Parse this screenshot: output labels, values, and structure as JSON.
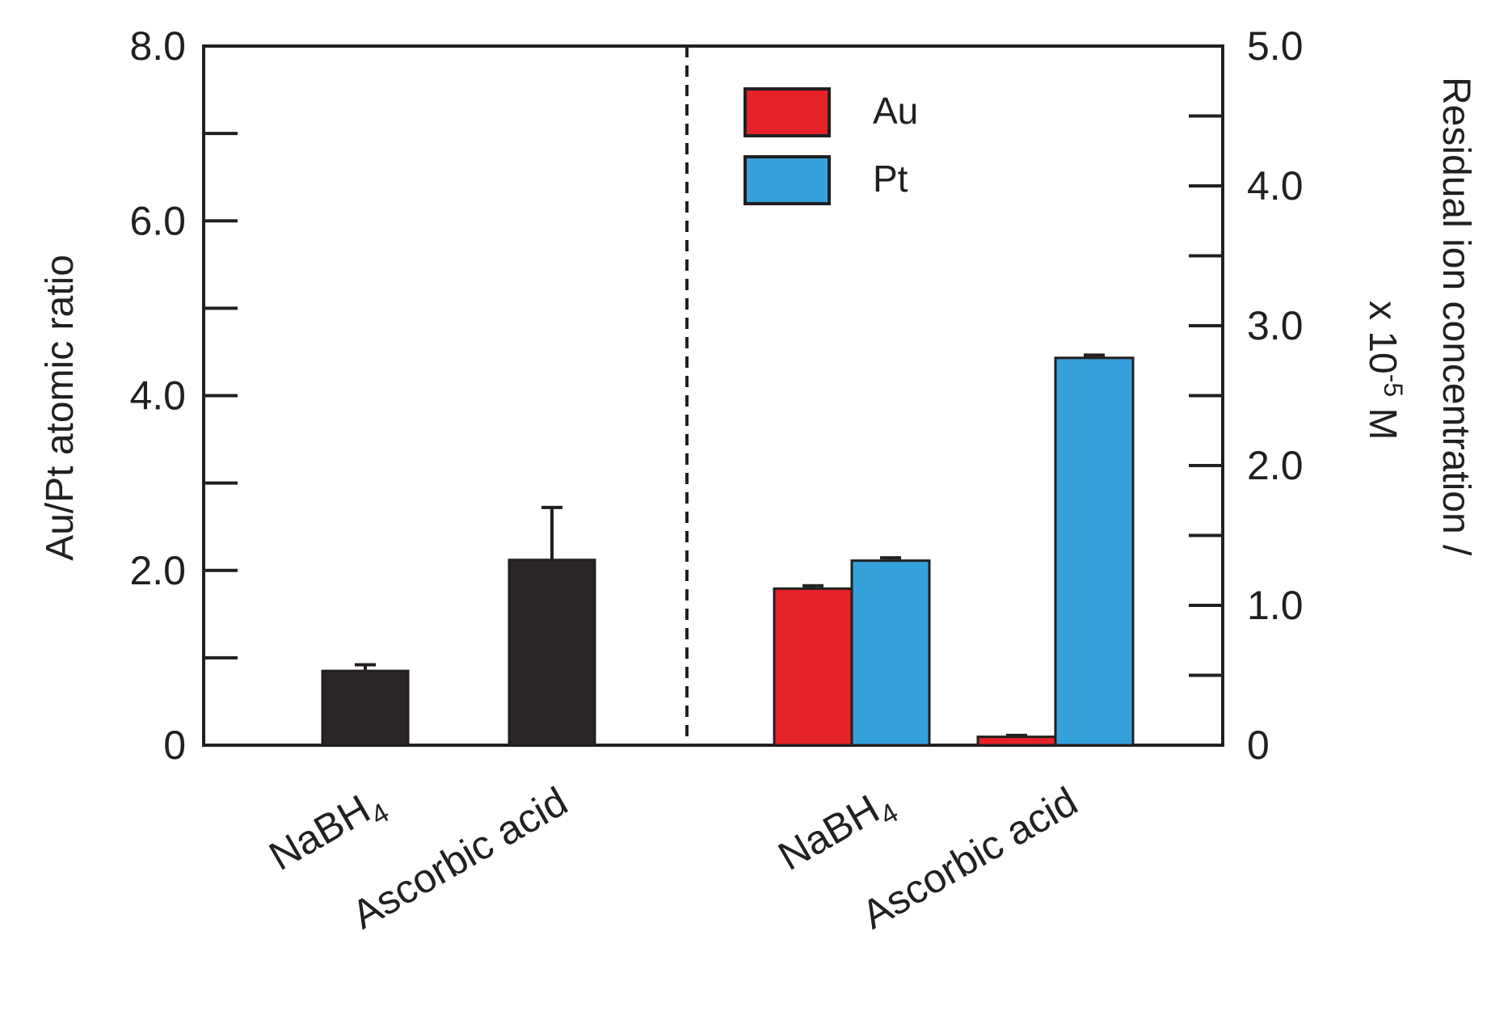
{
  "chart_data": {
    "type": "bar",
    "left_panel": {
      "ylabel": "Au/Pt atomic ratio",
      "ylim": [
        0,
        8
      ],
      "yticks": [
        "0",
        "2.0",
        "4.0",
        "6.0",
        "8.0"
      ],
      "categories": [
        {
          "base": "NaBH",
          "sub": "4"
        },
        {
          "base": "Ascorbic acid",
          "sub": ""
        }
      ],
      "series": [
        {
          "values": [
            0.85,
            2.12
          ],
          "errors": [
            0.07,
            0.6
          ],
          "color": "#2a2627"
        }
      ]
    },
    "right_panel": {
      "ylabel_line1": "Residual ion concentration /",
      "ylabel_line2_pre": "x 10",
      "ylabel_line2_sup": "-5",
      "ylabel_line2_post": " M",
      "ylim": [
        0,
        5
      ],
      "yticks": [
        "0",
        "1.0",
        "2.0",
        "3.0",
        "4.0",
        "5.0"
      ],
      "categories": [
        {
          "base": "NaBH",
          "sub": "4"
        },
        {
          "base": "Ascorbic acid",
          "sub": ""
        }
      ],
      "series": [
        {
          "name": "Au",
          "values": [
            1.12,
            0.06
          ],
          "errors": [
            0.02,
            0.01
          ],
          "color": "#e52228"
        },
        {
          "name": "Pt",
          "values": [
            1.32,
            2.77
          ],
          "errors": [
            0.02,
            0.02
          ],
          "color": "#35a1db"
        }
      ]
    },
    "legend": {
      "position": "top-center-right"
    }
  }
}
